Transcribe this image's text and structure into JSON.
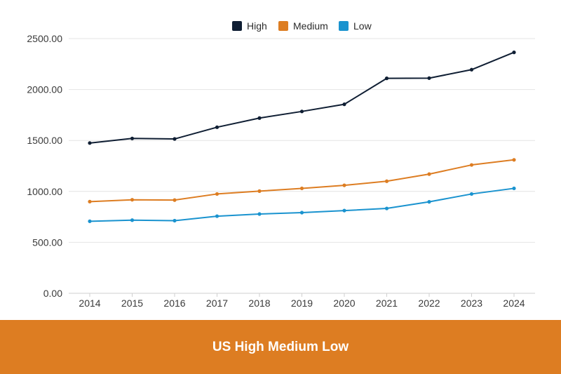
{
  "chart_data": {
    "type": "line",
    "title": "US High Medium Low",
    "xlabel": "",
    "ylabel": "",
    "ylim": [
      0,
      2500
    ],
    "yticks": [
      0,
      500,
      1000,
      1500,
      2000,
      2500
    ],
    "ytick_labels": [
      "0.00",
      "500.00",
      "1000.00",
      "1500.00",
      "2000.00",
      "2500.00"
    ],
    "categories": [
      "2014",
      "2015",
      "2016",
      "2017",
      "2018",
      "2019",
      "2020",
      "2021",
      "2022",
      "2023",
      "2024"
    ],
    "grid": true,
    "legend_position": "top-center",
    "series": [
      {
        "name": "High",
        "color": "#0f1e33",
        "values": [
          1475,
          1520,
          1515,
          1630,
          1720,
          1785,
          1855,
          2110,
          2112,
          2195,
          2365
        ]
      },
      {
        "name": "Medium",
        "color": "#dd7d22",
        "values": [
          900,
          918,
          915,
          975,
          1003,
          1030,
          1060,
          1100,
          1170,
          1260,
          1310
        ]
      },
      {
        "name": "Low",
        "color": "#1a93cf",
        "values": [
          707,
          718,
          713,
          757,
          778,
          792,
          812,
          833,
          898,
          975,
          1030
        ]
      }
    ]
  },
  "footer": {
    "title": "US High Medium Low",
    "background": "#dd7d22"
  }
}
